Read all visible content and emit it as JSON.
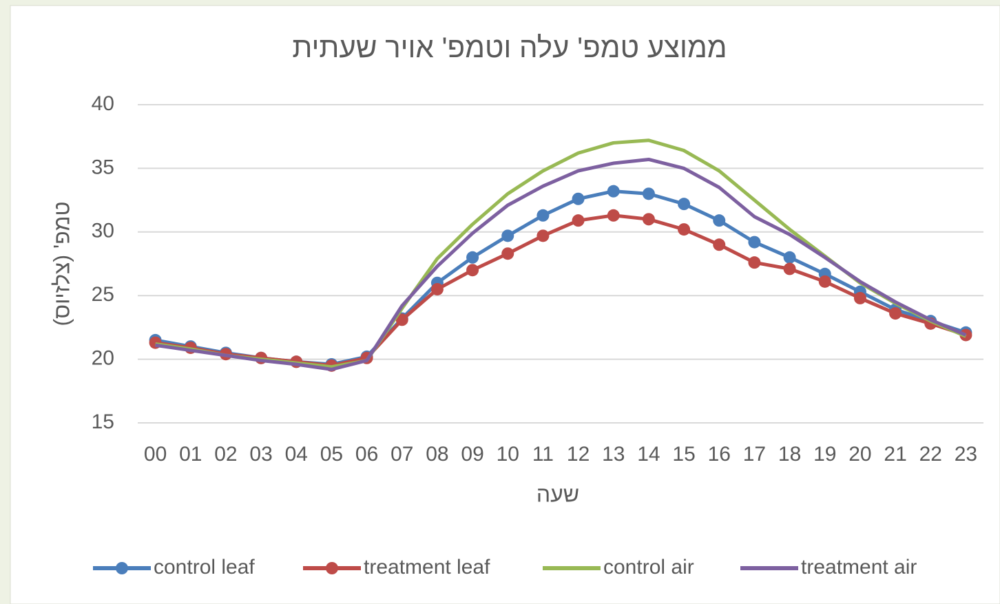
{
  "chart_data": {
    "type": "line",
    "title": "ממוצע טמפ' עלה וטמפ' אויר שעתית",
    "x_label": "שעה",
    "y_label": "טמפ' (צלזיוס)",
    "categories": [
      "00",
      "01",
      "02",
      "03",
      "04",
      "05",
      "06",
      "07",
      "08",
      "09",
      "10",
      "11",
      "12",
      "13",
      "14",
      "15",
      "16",
      "17",
      "18",
      "19",
      "20",
      "21",
      "22",
      "23"
    ],
    "ylim": [
      15,
      40
    ],
    "yticks": [
      15,
      20,
      25,
      30,
      35,
      40
    ],
    "grid": true,
    "legend": "bottom",
    "series": [
      {
        "name": "control leaf",
        "color": "#4a7ebb",
        "markers": true,
        "values": [
          21.5,
          21.0,
          20.5,
          20.1,
          19.8,
          19.6,
          20.2,
          23.2,
          26.0,
          28.0,
          29.7,
          31.3,
          32.6,
          33.2,
          33.0,
          32.2,
          30.9,
          29.2,
          28.0,
          26.7,
          25.3,
          23.9,
          23.0,
          22.1
        ]
      },
      {
        "name": "treatment leaf",
        "color": "#be4b48",
        "markers": true,
        "values": [
          21.3,
          20.9,
          20.4,
          20.1,
          19.8,
          19.5,
          20.1,
          23.1,
          25.5,
          27.0,
          28.3,
          29.7,
          30.9,
          31.3,
          31.0,
          30.2,
          29.0,
          27.6,
          27.1,
          26.1,
          24.8,
          23.6,
          22.8,
          21.9
        ]
      },
      {
        "name": "control air",
        "color": "#98b954",
        "markers": false,
        "values": [
          21.2,
          20.8,
          20.3,
          20.0,
          19.7,
          19.4,
          19.9,
          24.0,
          27.9,
          30.6,
          33.0,
          34.8,
          36.2,
          37.0,
          37.2,
          36.4,
          34.8,
          32.5,
          30.2,
          28.1,
          26.0,
          24.4,
          23.0,
          21.8
        ]
      },
      {
        "name": "treatment air",
        "color": "#7d60a0",
        "markers": false,
        "values": [
          21.1,
          20.7,
          20.3,
          19.9,
          19.6,
          19.2,
          19.9,
          24.2,
          27.3,
          29.9,
          32.1,
          33.6,
          34.8,
          35.4,
          35.7,
          35.0,
          33.5,
          31.2,
          29.8,
          28.0,
          26.1,
          24.5,
          23.1,
          21.9
        ]
      }
    ]
  }
}
